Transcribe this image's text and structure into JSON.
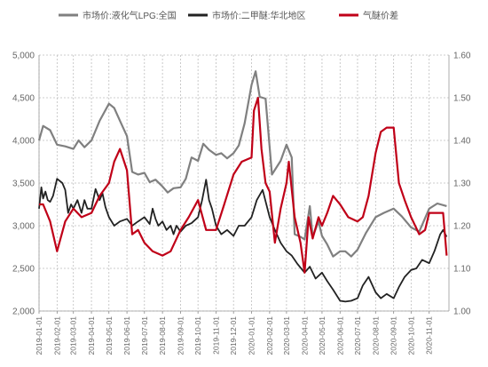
{
  "chart_data": {
    "type": "line",
    "legend_position": "top",
    "grid": true,
    "y_left": {
      "min": 2000,
      "max": 5000,
      "step": 500
    },
    "y_right": {
      "min": 1.0,
      "max": 1.6,
      "step": 0.1
    },
    "y_left_tick_labels": [
      "2,000",
      "2,500",
      "3,000",
      "3,500",
      "4,000",
      "4,500",
      "5,000"
    ],
    "y_right_tick_labels": [
      "1.00",
      "1.10",
      "1.20",
      "1.30",
      "1.40",
      "1.50",
      "1.60"
    ],
    "x_tick_labels": [
      "2019-01-01",
      "2019-02-01",
      "2019-03-01",
      "2019-04-01",
      "2019-05-01",
      "2019-06-01",
      "2019-07-01",
      "2019-08-01",
      "2019-09-01",
      "2019-10-01",
      "2019-11-01",
      "2019-12-01",
      "2020-01-01",
      "2020-02-01",
      "2020-03-01",
      "2020-04-01",
      "2020-05-01",
      "2020-06-01",
      "2020-07-01",
      "2020-08-01",
      "2020-09-01",
      "2020-10-01",
      "2020-11-01"
    ],
    "x_range": [
      "2019-01-01",
      "2020-12-05"
    ],
    "series": [
      {
        "name": "市场价:液化气LPG:全国",
        "axis": "left",
        "color": "#808080",
        "points": [
          [
            "2019-01-01",
            4000
          ],
          [
            "2019-01-08",
            4170
          ],
          [
            "2019-01-20",
            4120
          ],
          [
            "2019-02-01",
            3950
          ],
          [
            "2019-02-15",
            3930
          ],
          [
            "2019-03-01",
            3900
          ],
          [
            "2019-03-10",
            4000
          ],
          [
            "2019-03-20",
            3920
          ],
          [
            "2019-04-01",
            4000
          ],
          [
            "2019-04-15",
            4230
          ],
          [
            "2019-05-01",
            4430
          ],
          [
            "2019-05-10",
            4380
          ],
          [
            "2019-05-20",
            4230
          ],
          [
            "2019-06-01",
            4050
          ],
          [
            "2019-06-10",
            3630
          ],
          [
            "2019-06-20",
            3600
          ],
          [
            "2019-07-01",
            3620
          ],
          [
            "2019-07-10",
            3510
          ],
          [
            "2019-07-20",
            3540
          ],
          [
            "2019-08-01",
            3460
          ],
          [
            "2019-08-10",
            3390
          ],
          [
            "2019-08-20",
            3440
          ],
          [
            "2019-09-01",
            3450
          ],
          [
            "2019-09-10",
            3550
          ],
          [
            "2019-09-20",
            3800
          ],
          [
            "2019-10-01",
            3760
          ],
          [
            "2019-10-10",
            3960
          ],
          [
            "2019-10-20",
            3890
          ],
          [
            "2019-11-01",
            3830
          ],
          [
            "2019-11-10",
            3850
          ],
          [
            "2019-11-20",
            3790
          ],
          [
            "2019-12-01",
            3850
          ],
          [
            "2019-12-10",
            3940
          ],
          [
            "2019-12-20",
            4200
          ],
          [
            "2020-01-01",
            4650
          ],
          [
            "2020-01-08",
            4810
          ],
          [
            "2020-01-15",
            4510
          ],
          [
            "2020-01-25",
            4490
          ],
          [
            "2020-02-05",
            3600
          ],
          [
            "2020-02-20",
            3760
          ],
          [
            "2020-03-01",
            3950
          ],
          [
            "2020-03-10",
            3800
          ],
          [
            "2020-03-15",
            2900
          ],
          [
            "2020-03-25",
            2870
          ],
          [
            "2020-04-01",
            2840
          ],
          [
            "2020-04-10",
            3230
          ],
          [
            "2020-04-15",
            2870
          ],
          [
            "2020-04-25",
            3050
          ],
          [
            "2020-05-01",
            2880
          ],
          [
            "2020-05-10",
            2780
          ],
          [
            "2020-05-20",
            2640
          ],
          [
            "2020-06-01",
            2700
          ],
          [
            "2020-06-10",
            2700
          ],
          [
            "2020-06-20",
            2640
          ],
          [
            "2020-07-01",
            2720
          ],
          [
            "2020-07-15",
            2910
          ],
          [
            "2020-08-01",
            3100
          ],
          [
            "2020-08-15",
            3150
          ],
          [
            "2020-09-01",
            3200
          ],
          [
            "2020-09-15",
            3110
          ],
          [
            "2020-10-01",
            2980
          ],
          [
            "2020-10-15",
            2930
          ],
          [
            "2020-11-01",
            3200
          ],
          [
            "2020-11-15",
            3260
          ],
          [
            "2020-12-01",
            3230
          ]
        ]
      },
      {
        "name": "市场价:二甲醚:华北地区",
        "axis": "left",
        "color": "#222222",
        "points": [
          [
            "2019-01-01",
            3200
          ],
          [
            "2019-01-05",
            3450
          ],
          [
            "2019-01-08",
            3320
          ],
          [
            "2019-01-12",
            3400
          ],
          [
            "2019-01-16",
            3300
          ],
          [
            "2019-01-20",
            3280
          ],
          [
            "2019-01-25",
            3350
          ],
          [
            "2019-02-01",
            3550
          ],
          [
            "2019-02-10",
            3500
          ],
          [
            "2019-02-15",
            3420
          ],
          [
            "2019-02-20",
            3150
          ],
          [
            "2019-02-25",
            3250
          ],
          [
            "2019-03-01",
            3200
          ],
          [
            "2019-03-08",
            3300
          ],
          [
            "2019-03-15",
            3150
          ],
          [
            "2019-03-20",
            3300
          ],
          [
            "2019-03-25",
            3200
          ],
          [
            "2019-04-01",
            3200
          ],
          [
            "2019-04-08",
            3430
          ],
          [
            "2019-04-15",
            3300
          ],
          [
            "2019-04-20",
            3380
          ],
          [
            "2019-04-25",
            3220
          ],
          [
            "2019-05-01",
            3100
          ],
          [
            "2019-05-10",
            3000
          ],
          [
            "2019-05-20",
            3050
          ],
          [
            "2019-06-01",
            3080
          ],
          [
            "2019-06-10",
            3000
          ],
          [
            "2019-06-20",
            3050
          ],
          [
            "2019-07-01",
            3100
          ],
          [
            "2019-07-10",
            3020
          ],
          [
            "2019-07-15",
            3200
          ],
          [
            "2019-07-20",
            3080
          ],
          [
            "2019-07-25",
            3000
          ],
          [
            "2019-08-01",
            3050
          ],
          [
            "2019-08-08",
            2950
          ],
          [
            "2019-08-15",
            3000
          ],
          [
            "2019-08-20",
            2900
          ],
          [
            "2019-08-25",
            3000
          ],
          [
            "2019-09-01",
            2930
          ],
          [
            "2019-09-10",
            3000
          ],
          [
            "2019-09-20",
            3030
          ],
          [
            "2019-10-01",
            3100
          ],
          [
            "2019-10-08",
            3300
          ],
          [
            "2019-10-15",
            3540
          ],
          [
            "2019-10-20",
            3300
          ],
          [
            "2019-10-25",
            3200
          ],
          [
            "2019-11-01",
            3000
          ],
          [
            "2019-11-10",
            2900
          ],
          [
            "2019-11-20",
            2950
          ],
          [
            "2019-12-01",
            2880
          ],
          [
            "2019-12-10",
            3000
          ],
          [
            "2019-12-20",
            3000
          ],
          [
            "2020-01-01",
            3100
          ],
          [
            "2020-01-10",
            3300
          ],
          [
            "2020-01-20",
            3420
          ],
          [
            "2020-02-01",
            3100
          ],
          [
            "2020-02-10",
            2950
          ],
          [
            "2020-02-20",
            2800
          ],
          [
            "2020-03-01",
            2700
          ],
          [
            "2020-03-10",
            2650
          ],
          [
            "2020-03-20",
            2550
          ],
          [
            "2020-04-01",
            2450
          ],
          [
            "2020-04-10",
            2520
          ],
          [
            "2020-04-20",
            2380
          ],
          [
            "2020-05-01",
            2450
          ],
          [
            "2020-05-10",
            2350
          ],
          [
            "2020-05-20",
            2250
          ],
          [
            "2020-06-01",
            2120
          ],
          [
            "2020-06-10",
            2110
          ],
          [
            "2020-06-20",
            2120
          ],
          [
            "2020-07-01",
            2150
          ],
          [
            "2020-07-10",
            2300
          ],
          [
            "2020-07-20",
            2400
          ],
          [
            "2020-08-01",
            2220
          ],
          [
            "2020-08-10",
            2150
          ],
          [
            "2020-08-20",
            2200
          ],
          [
            "2020-09-01",
            2150
          ],
          [
            "2020-09-10",
            2280
          ],
          [
            "2020-09-20",
            2400
          ],
          [
            "2020-10-01",
            2480
          ],
          [
            "2020-10-10",
            2500
          ],
          [
            "2020-10-20",
            2600
          ],
          [
            "2020-11-01",
            2560
          ],
          [
            "2020-11-10",
            2700
          ],
          [
            "2020-11-20",
            2900
          ],
          [
            "2020-11-25",
            2950
          ],
          [
            "2020-12-01",
            2870
          ]
        ]
      },
      {
        "name": "气醚价差",
        "axis": "right",
        "color": "#c00018",
        "points": [
          [
            "2019-01-01",
            1.25
          ],
          [
            "2019-01-08",
            1.25
          ],
          [
            "2019-01-20",
            1.21
          ],
          [
            "2019-02-01",
            1.14
          ],
          [
            "2019-02-15",
            1.21
          ],
          [
            "2019-03-01",
            1.24
          ],
          [
            "2019-03-15",
            1.22
          ],
          [
            "2019-04-01",
            1.23
          ],
          [
            "2019-04-15",
            1.27
          ],
          [
            "2019-05-01",
            1.3
          ],
          [
            "2019-05-10",
            1.35
          ],
          [
            "2019-05-20",
            1.38
          ],
          [
            "2019-06-01",
            1.33
          ],
          [
            "2019-06-10",
            1.18
          ],
          [
            "2019-06-20",
            1.19
          ],
          [
            "2019-07-01",
            1.16
          ],
          [
            "2019-07-15",
            1.14
          ],
          [
            "2019-08-01",
            1.13
          ],
          [
            "2019-08-15",
            1.14
          ],
          [
            "2019-09-01",
            1.19
          ],
          [
            "2019-09-15",
            1.22
          ],
          [
            "2019-10-01",
            1.26
          ],
          [
            "2019-10-15",
            1.19
          ],
          [
            "2019-11-01",
            1.19
          ],
          [
            "2019-11-15",
            1.25
          ],
          [
            "2019-12-01",
            1.32
          ],
          [
            "2019-12-15",
            1.35
          ],
          [
            "2020-01-01",
            1.36
          ],
          [
            "2020-01-05",
            1.47
          ],
          [
            "2020-01-12",
            1.5
          ],
          [
            "2020-01-18",
            1.38
          ],
          [
            "2020-01-25",
            1.3
          ],
          [
            "2020-02-01",
            1.28
          ],
          [
            "2020-02-10",
            1.16
          ],
          [
            "2020-02-20",
            1.24
          ],
          [
            "2020-03-01",
            1.3
          ],
          [
            "2020-03-05",
            1.35
          ],
          [
            "2020-03-15",
            1.22
          ],
          [
            "2020-03-25",
            1.16
          ],
          [
            "2020-04-01",
            1.09
          ],
          [
            "2020-04-08",
            1.22
          ],
          [
            "2020-04-15",
            1.17
          ],
          [
            "2020-04-25",
            1.22
          ],
          [
            "2020-05-01",
            1.2
          ],
          [
            "2020-05-10",
            1.23
          ],
          [
            "2020-05-20",
            1.27
          ],
          [
            "2020-06-01",
            1.25
          ],
          [
            "2020-06-15",
            1.22
          ],
          [
            "2020-07-01",
            1.21
          ],
          [
            "2020-07-10",
            1.22
          ],
          [
            "2020-07-20",
            1.27
          ],
          [
            "2020-08-01",
            1.37
          ],
          [
            "2020-08-10",
            1.42
          ],
          [
            "2020-08-20",
            1.43
          ],
          [
            "2020-09-01",
            1.43
          ],
          [
            "2020-09-10",
            1.3
          ],
          [
            "2020-09-20",
            1.26
          ],
          [
            "2020-10-01",
            1.22
          ],
          [
            "2020-10-15",
            1.18
          ],
          [
            "2020-10-25",
            1.19
          ],
          [
            "2020-11-01",
            1.23
          ],
          [
            "2020-11-15",
            1.23
          ],
          [
            "2020-11-25",
            1.23
          ],
          [
            "2020-12-01",
            1.13
          ]
        ]
      }
    ]
  }
}
